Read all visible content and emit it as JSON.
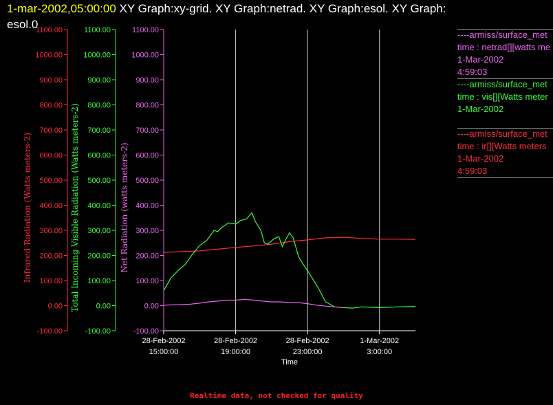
{
  "title": {
    "timestamp": "1-mar-2002,05:00:00",
    "line1_rest": "XY Graph:xy-grid.  XY Graph:netrad.  XY Graph:esol.  XY Graph:",
    "line2": "esol.0"
  },
  "legend": [
    {
      "color": "#ee66ee",
      "lines": [
        "----armiss/surface_met",
        "time : netrad[][watts me",
        "1-Mar-2002",
        "4:59:03"
      ]
    },
    {
      "color": "#33ff33",
      "lines": [
        "----armiss/surface_met",
        "time : vis[][Watts meter",
        "1-Mar-2002"
      ]
    },
    {
      "color": "#ff2a40",
      "lines": [
        "----armiss/surface_met",
        "time : ir[][Watts meters",
        "1-Mar-2002",
        "4:59:03"
      ]
    }
  ],
  "footer": "Realtime data, not checked for quality",
  "colors": {
    "ir": "#ff2a40",
    "vis": "#33ff33",
    "net": "#ee66ee",
    "grid": "#cccccc",
    "axis": "#ffffff"
  },
  "chart_data": {
    "type": "line",
    "xlabel": "Time",
    "x_ticks": [
      {
        "t": 15,
        "label1": "28-Feb-2002",
        "label2": "15:00:00"
      },
      {
        "t": 19,
        "label1": "28-Feb-2002",
        "label2": "19:00:00"
      },
      {
        "t": 23,
        "label1": "28-Feb-2002",
        "label2": "23:00:00"
      },
      {
        "t": 27,
        "label1": "1-Mar-2002",
        "label2": "3:00:00"
      }
    ],
    "xlim": [
      15,
      29
    ],
    "grid": "vertical lines at time ticks",
    "axes": [
      {
        "id": "ir",
        "label": "Infrared Radiation (Watts meters-2)",
        "ylim": [
          -100,
          1100
        ],
        "ticks": [
          "-100.00",
          "0.00",
          "100.00",
          "200.00",
          "300.00",
          "400.00",
          "500.00",
          "600.00",
          "700.00",
          "800.00",
          "900.00",
          "1000.00",
          "1100.00"
        ]
      },
      {
        "id": "vis",
        "label": "Total Incoming Visible Radiation (Watts meters-2)",
        "ylim": [
          -100,
          1100
        ],
        "ticks": [
          "-100.00",
          "0.00",
          "100.00",
          "200.00",
          "300.00",
          "400.00",
          "500.00",
          "600.00",
          "700.00",
          "800.00",
          "900.00",
          "1000.00",
          "1100.00"
        ]
      },
      {
        "id": "net",
        "label": "Net Radiation (watts meters-2)",
        "ylim": [
          -100,
          1100
        ],
        "ticks": [
          "-100.00",
          "0.00",
          "100.00",
          "200.00",
          "300.00",
          "400.00",
          "500.00",
          "600.00",
          "700.00",
          "800.00",
          "900.00",
          "1000.00",
          "1100.00"
        ]
      }
    ],
    "series": [
      {
        "name": "ir",
        "axis": "ir",
        "x": [
          15.0,
          16.0,
          17.0,
          18.0,
          19.0,
          20.0,
          21.0,
          22.0,
          23.0,
          24.0,
          25.0,
          26.0,
          27.0,
          28.0,
          29.0
        ],
        "y": [
          212,
          215,
          218,
          225,
          232,
          238,
          245,
          255,
          262,
          270,
          272,
          268,
          265,
          265,
          264
        ]
      },
      {
        "name": "vis",
        "axis": "vis",
        "x": [
          15.0,
          15.4,
          15.8,
          16.2,
          16.6,
          17.0,
          17.4,
          17.8,
          18.0,
          18.2,
          18.6,
          19.0,
          19.3,
          19.6,
          19.9,
          20.1,
          20.4,
          20.6,
          20.8,
          21.1,
          21.4,
          21.6,
          21.8,
          22.0,
          22.2,
          22.5,
          22.8,
          23.0,
          23.3,
          23.6,
          24.0,
          24.5,
          25.0,
          25.5,
          26.0,
          27.0,
          28.0,
          29.0
        ],
        "y": [
          60,
          110,
          140,
          165,
          205,
          240,
          260,
          300,
          295,
          310,
          330,
          325,
          340,
          345,
          370,
          335,
          300,
          250,
          245,
          265,
          275,
          235,
          265,
          290,
          270,
          195,
          160,
          140,
          105,
          70,
          15,
          -5,
          -8,
          -10,
          -5,
          -8,
          -5,
          -3
        ]
      },
      {
        "name": "net",
        "axis": "net",
        "x": [
          15.0,
          16.0,
          16.5,
          17.0,
          17.5,
          18.0,
          18.5,
          19.0,
          19.5,
          20.0,
          20.5,
          21.0,
          21.5,
          22.0,
          22.5,
          23.0,
          23.5,
          24.0,
          24.5,
          25.0
        ],
        "y": [
          2,
          4,
          6,
          10,
          15,
          18,
          22,
          22,
          25,
          22,
          18,
          15,
          15,
          12,
          12,
          8,
          2,
          -2,
          -5,
          -8
        ]
      }
    ]
  }
}
